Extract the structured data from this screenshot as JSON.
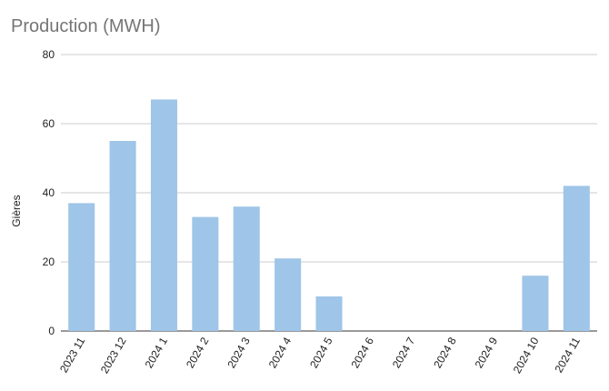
{
  "chart_data": {
    "type": "bar",
    "title": "Production (MWH)",
    "xlabel": "",
    "ylabel": "Gières",
    "ylim": [
      0,
      80
    ],
    "yticks": [
      0,
      20,
      40,
      60,
      80
    ],
    "grid": true,
    "legend": "none",
    "bar_color": "#9fc5e8",
    "grid_color": "#cccccc",
    "categories": [
      "2023 11",
      "2023 12",
      "2024 1",
      "2024 2",
      "2024 3",
      "2024 4",
      "2024 5",
      "2024 6",
      "2024 7",
      "2024 8",
      "2024 9",
      "2024 10",
      "2024 11"
    ],
    "values": [
      37,
      55,
      67,
      33,
      36,
      21,
      10,
      0,
      0,
      0,
      0,
      16,
      42
    ]
  }
}
